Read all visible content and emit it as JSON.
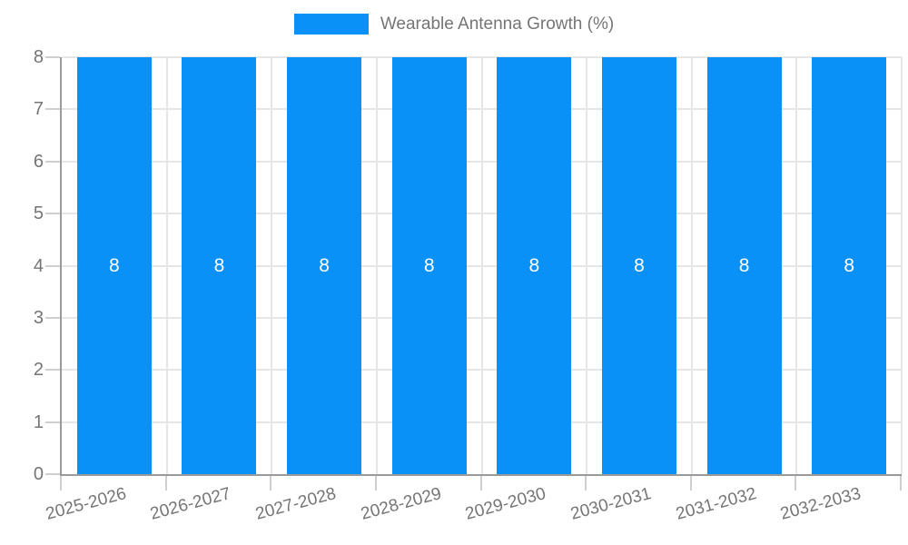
{
  "chart_data": {
    "type": "bar",
    "title": "Wearable Antenna Growth (%)",
    "categories": [
      "2025-2026",
      "2026-2027",
      "2027-2028",
      "2028-2029",
      "2029-2030",
      "2030-2031",
      "2031-2032",
      "2032-2033"
    ],
    "values": [
      8,
      8,
      8,
      8,
      8,
      8,
      8,
      8
    ],
    "bar_labels": [
      "8",
      "8",
      "8",
      "8",
      "8",
      "8",
      "8",
      "8"
    ],
    "xlabel": "",
    "ylabel": "",
    "ylim": [
      0,
      8
    ],
    "yticks": [
      0,
      1,
      2,
      3,
      4,
      5,
      6,
      7,
      8
    ],
    "grid": true,
    "legend_position": "top-center",
    "series": [
      {
        "name": "Wearable Antenna Growth (%)",
        "values": [
          8,
          8,
          8,
          8,
          8,
          8,
          8,
          8
        ]
      }
    ],
    "colors": {
      "bar": "#0a91f8",
      "bar_label": "#ffffff",
      "grid": "#e6e6e6",
      "axis": "#9a9a9a",
      "tick": "#cfcfcf",
      "text": "#757575",
      "background": "#ffffff"
    }
  }
}
